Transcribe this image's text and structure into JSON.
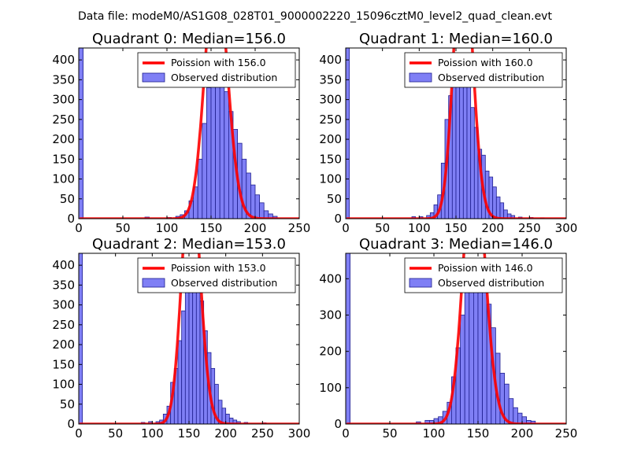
{
  "figure_title": "Data file: modeM0/AS1G08_028T01_9000002220_15096cztM0_level2_quad_clean.evt",
  "colors": {
    "bar_fill": "#7f7ff5",
    "bar_edge": "#1f1f8f",
    "poisson_line": "#ff0000",
    "axes": "#000000"
  },
  "chart_data": [
    {
      "type": "bar",
      "title": "Quadrant 0: Median=156.0",
      "xlim": [
        0,
        250
      ],
      "ylim": [
        0,
        430
      ],
      "xticks": [
        0,
        50,
        100,
        150,
        200,
        250
      ],
      "yticks": [
        0,
        50,
        100,
        150,
        200,
        250,
        300,
        350,
        400
      ],
      "legend_loc": "top-right",
      "legend": [
        "Poission with 156.0",
        "Observed distribution"
      ],
      "median": 156.0,
      "bin_width": 5,
      "bins": [
        {
          "x": 0,
          "count": 430
        },
        {
          "x": 75,
          "count": 4
        },
        {
          "x": 100,
          "count": 3
        },
        {
          "x": 110,
          "count": 6
        },
        {
          "x": 115,
          "count": 10
        },
        {
          "x": 120,
          "count": 20
        },
        {
          "x": 125,
          "count": 45
        },
        {
          "x": 130,
          "count": 80
        },
        {
          "x": 135,
          "count": 150
        },
        {
          "x": 140,
          "count": 240
        },
        {
          "x": 145,
          "count": 330
        },
        {
          "x": 150,
          "count": 405
        },
        {
          "x": 155,
          "count": 395
        },
        {
          "x": 160,
          "count": 395
        },
        {
          "x": 165,
          "count": 320
        },
        {
          "x": 170,
          "count": 270
        },
        {
          "x": 175,
          "count": 225
        },
        {
          "x": 180,
          "count": 190
        },
        {
          "x": 185,
          "count": 150
        },
        {
          "x": 190,
          "count": 115
        },
        {
          "x": 195,
          "count": 85
        },
        {
          "x": 200,
          "count": 60
        },
        {
          "x": 205,
          "count": 40
        },
        {
          "x": 210,
          "count": 20
        },
        {
          "x": 215,
          "count": 12
        },
        {
          "x": 220,
          "count": 6
        }
      ]
    },
    {
      "type": "bar",
      "title": "Quadrant 1: Median=160.0",
      "xlim": [
        0,
        300
      ],
      "ylim": [
        0,
        430
      ],
      "xticks": [
        0,
        50,
        100,
        150,
        200,
        250,
        300
      ],
      "yticks": [
        0,
        50,
        100,
        150,
        200,
        250,
        300,
        350,
        400
      ],
      "legend_loc": "top-right",
      "legend": [
        "Poission with 160.0",
        "Observed distribution"
      ],
      "median": 160.0,
      "bin_width": 5,
      "bins": [
        {
          "x": 0,
          "count": 430
        },
        {
          "x": 90,
          "count": 5
        },
        {
          "x": 100,
          "count": 5
        },
        {
          "x": 110,
          "count": 8
        },
        {
          "x": 115,
          "count": 15
        },
        {
          "x": 120,
          "count": 35
        },
        {
          "x": 125,
          "count": 60
        },
        {
          "x": 130,
          "count": 140
        },
        {
          "x": 135,
          "count": 250
        },
        {
          "x": 140,
          "count": 310
        },
        {
          "x": 145,
          "count": 350
        },
        {
          "x": 150,
          "count": 400
        },
        {
          "x": 155,
          "count": 415
        },
        {
          "x": 160,
          "count": 390
        },
        {
          "x": 165,
          "count": 350
        },
        {
          "x": 170,
          "count": 280
        },
        {
          "x": 175,
          "count": 230
        },
        {
          "x": 180,
          "count": 175
        },
        {
          "x": 185,
          "count": 160
        },
        {
          "x": 190,
          "count": 120
        },
        {
          "x": 195,
          "count": 105
        },
        {
          "x": 200,
          "count": 80
        },
        {
          "x": 205,
          "count": 55
        },
        {
          "x": 210,
          "count": 40
        },
        {
          "x": 215,
          "count": 22
        },
        {
          "x": 220,
          "count": 12
        },
        {
          "x": 225,
          "count": 8
        },
        {
          "x": 235,
          "count": 4
        },
        {
          "x": 250,
          "count": 3
        },
        {
          "x": 265,
          "count": 2
        }
      ]
    },
    {
      "type": "bar",
      "title": "Quadrant 2: Median=153.0",
      "xlim": [
        0,
        300
      ],
      "ylim": [
        0,
        430
      ],
      "xticks": [
        0,
        50,
        100,
        150,
        200,
        250,
        300
      ],
      "yticks": [
        0,
        50,
        100,
        150,
        200,
        250,
        300,
        350,
        400
      ],
      "legend_loc": "top-right",
      "legend": [
        "Poission with 153.0",
        "Observed distribution"
      ],
      "median": 153.0,
      "bin_width": 5,
      "bins": [
        {
          "x": 0,
          "count": 430
        },
        {
          "x": 85,
          "count": 4
        },
        {
          "x": 95,
          "count": 6
        },
        {
          "x": 105,
          "count": 6
        },
        {
          "x": 110,
          "count": 10
        },
        {
          "x": 115,
          "count": 25
        },
        {
          "x": 120,
          "count": 45
        },
        {
          "x": 125,
          "count": 105
        },
        {
          "x": 130,
          "count": 140
        },
        {
          "x": 135,
          "count": 210
        },
        {
          "x": 140,
          "count": 285
        },
        {
          "x": 145,
          "count": 380
        },
        {
          "x": 150,
          "count": 405
        },
        {
          "x": 155,
          "count": 410
        },
        {
          "x": 160,
          "count": 365
        },
        {
          "x": 165,
          "count": 310
        },
        {
          "x": 170,
          "count": 235
        },
        {
          "x": 175,
          "count": 180
        },
        {
          "x": 180,
          "count": 140
        },
        {
          "x": 185,
          "count": 100
        },
        {
          "x": 190,
          "count": 60
        },
        {
          "x": 195,
          "count": 40
        },
        {
          "x": 200,
          "count": 25
        },
        {
          "x": 205,
          "count": 15
        },
        {
          "x": 210,
          "count": 10
        },
        {
          "x": 215,
          "count": 6
        },
        {
          "x": 225,
          "count": 4
        },
        {
          "x": 250,
          "count": 3
        }
      ]
    },
    {
      "type": "bar",
      "title": "Quadrant 3: Median=146.0",
      "xlim": [
        0,
        250
      ],
      "ylim": [
        0,
        470
      ],
      "xticks": [
        0,
        50,
        100,
        150,
        200,
        250
      ],
      "yticks": [
        0,
        100,
        200,
        300,
        400
      ],
      "legend_loc": "top-right",
      "legend": [
        "Poission with 146.0",
        "Observed distribution"
      ],
      "median": 146.0,
      "bin_width": 5,
      "bins": [
        {
          "x": 0,
          "count": 470
        },
        {
          "x": 80,
          "count": 6
        },
        {
          "x": 90,
          "count": 10
        },
        {
          "x": 95,
          "count": 10
        },
        {
          "x": 100,
          "count": 15
        },
        {
          "x": 105,
          "count": 20
        },
        {
          "x": 110,
          "count": 35
        },
        {
          "x": 115,
          "count": 60
        },
        {
          "x": 120,
          "count": 130
        },
        {
          "x": 125,
          "count": 210
        },
        {
          "x": 130,
          "count": 300
        },
        {
          "x": 135,
          "count": 370
        },
        {
          "x": 140,
          "count": 410
        },
        {
          "x": 145,
          "count": 450
        },
        {
          "x": 150,
          "count": 435
        },
        {
          "x": 155,
          "count": 390
        },
        {
          "x": 160,
          "count": 330
        },
        {
          "x": 165,
          "count": 265
        },
        {
          "x": 170,
          "count": 195
        },
        {
          "x": 175,
          "count": 140
        },
        {
          "x": 180,
          "count": 110
        },
        {
          "x": 185,
          "count": 70
        },
        {
          "x": 190,
          "count": 45
        },
        {
          "x": 195,
          "count": 30
        },
        {
          "x": 200,
          "count": 20
        },
        {
          "x": 205,
          "count": 10
        },
        {
          "x": 210,
          "count": 8
        }
      ]
    }
  ]
}
